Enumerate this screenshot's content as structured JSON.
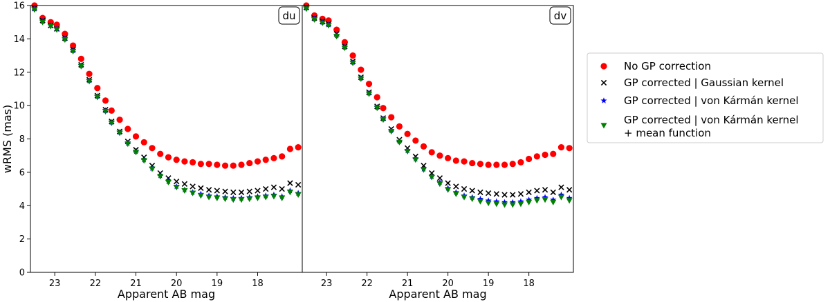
{
  "chart_data": [
    {
      "type": "scatter",
      "panel_tag": "du",
      "xlabel": "Apparent AB mag",
      "ylabel": "wRMS (mas)",
      "xlim": [
        23.6,
        16.9
      ],
      "ylim": [
        0,
        16
      ],
      "xticks": [
        23,
        22,
        21,
        20,
        19,
        18
      ],
      "yticks": [
        0,
        2,
        4,
        6,
        8,
        10,
        12,
        14,
        16
      ],
      "x": [
        23.5,
        23.3,
        23.1,
        22.95,
        22.75,
        22.55,
        22.35,
        22.15,
        21.95,
        21.75,
        21.6,
        21.4,
        21.2,
        21.0,
        20.8,
        20.6,
        20.4,
        20.2,
        20.0,
        19.8,
        19.6,
        19.4,
        19.2,
        19.0,
        18.8,
        18.6,
        18.4,
        18.2,
        18.0,
        17.8,
        17.6,
        17.4,
        17.2,
        17.0
      ],
      "series": [
        {
          "name": "No GP correction",
          "marker": "circle",
          "color": "#ff0000",
          "values": [
            16.0,
            15.25,
            15.0,
            14.85,
            14.3,
            13.6,
            12.8,
            11.9,
            11.05,
            10.3,
            9.7,
            9.15,
            8.6,
            8.15,
            7.8,
            7.45,
            7.1,
            6.9,
            6.75,
            6.65,
            6.6,
            6.5,
            6.5,
            6.45,
            6.4,
            6.4,
            6.45,
            6.55,
            6.65,
            6.75,
            6.85,
            6.95,
            7.4,
            7.5
          ]
        },
        {
          "name": "GP corrected | Gaussian kernel",
          "marker": "x",
          "color": "#000000",
          "values": [
            15.85,
            15.1,
            14.8,
            14.6,
            14.05,
            13.35,
            12.45,
            11.55,
            10.6,
            9.75,
            9.05,
            8.45,
            7.85,
            7.35,
            6.9,
            6.4,
            5.95,
            5.65,
            5.45,
            5.3,
            5.15,
            5.05,
            4.95,
            4.9,
            4.85,
            4.8,
            4.8,
            4.85,
            4.9,
            5.0,
            5.1,
            5.0,
            5.35,
            5.25
          ]
        },
        {
          "name": "GP corrected | von Kármán kernel",
          "marker": "star",
          "color": "#0000ff",
          "values": [
            15.8,
            15.05,
            14.8,
            14.6,
            14.0,
            13.3,
            12.4,
            11.5,
            10.55,
            9.7,
            9.0,
            8.4,
            7.75,
            7.25,
            6.75,
            6.25,
            5.8,
            5.45,
            5.15,
            4.95,
            4.8,
            4.7,
            4.6,
            4.55,
            4.5,
            4.45,
            4.45,
            4.5,
            4.55,
            4.6,
            4.65,
            4.55,
            4.9,
            4.75
          ]
        },
        {
          "name": "GP corrected | von Kármán kernel + mean function",
          "marker": "triangle-down",
          "color": "#008000",
          "values": [
            15.75,
            15.0,
            14.75,
            14.55,
            13.95,
            13.25,
            12.35,
            11.45,
            10.5,
            9.65,
            8.95,
            8.35,
            7.7,
            7.2,
            6.7,
            6.2,
            5.75,
            5.4,
            5.1,
            4.9,
            4.75,
            4.6,
            4.5,
            4.45,
            4.4,
            4.35,
            4.35,
            4.4,
            4.45,
            4.5,
            4.55,
            4.45,
            4.8,
            4.65
          ]
        }
      ]
    },
    {
      "type": "scatter",
      "panel_tag": "dv",
      "xlabel": "Apparent AB mag",
      "ylabel": "",
      "xlim": [
        23.6,
        16.9
      ],
      "ylim": [
        0,
        16
      ],
      "xticks": [
        23,
        22,
        21,
        20,
        19,
        18
      ],
      "yticks": [],
      "x": [
        23.5,
        23.3,
        23.1,
        22.95,
        22.75,
        22.55,
        22.35,
        22.15,
        21.95,
        21.75,
        21.6,
        21.4,
        21.2,
        21.0,
        20.8,
        20.6,
        20.4,
        20.2,
        20.0,
        19.8,
        19.6,
        19.4,
        19.2,
        19.0,
        18.8,
        18.6,
        18.4,
        18.2,
        18.0,
        17.8,
        17.6,
        17.4,
        17.2,
        17.0
      ],
      "series": [
        {
          "name": "No GP correction",
          "marker": "circle",
          "color": "#ff0000",
          "values": [
            16.0,
            15.4,
            15.2,
            15.1,
            14.55,
            13.8,
            13.0,
            12.15,
            11.3,
            10.5,
            9.85,
            9.3,
            8.75,
            8.3,
            7.9,
            7.55,
            7.2,
            7.0,
            6.85,
            6.7,
            6.65,
            6.55,
            6.5,
            6.45,
            6.45,
            6.45,
            6.5,
            6.6,
            6.8,
            6.95,
            7.05,
            7.1,
            7.5,
            7.45
          ]
        },
        {
          "name": "GP corrected | Gaussian kernel",
          "marker": "x",
          "color": "#000000",
          "values": [
            15.9,
            15.25,
            15.05,
            14.9,
            14.3,
            13.55,
            12.65,
            11.7,
            10.8,
            9.95,
            9.25,
            8.6,
            7.95,
            7.45,
            6.95,
            6.4,
            5.95,
            5.65,
            5.35,
            5.15,
            5.0,
            4.9,
            4.8,
            4.75,
            4.7,
            4.65,
            4.65,
            4.7,
            4.8,
            4.9,
            4.95,
            4.8,
            5.1,
            4.95
          ]
        },
        {
          "name": "GP corrected | von Kármán kernel",
          "marker": "star",
          "color": "#0000ff",
          "values": [
            15.85,
            15.2,
            15.0,
            14.85,
            14.2,
            13.5,
            12.6,
            11.65,
            10.75,
            9.9,
            9.2,
            8.5,
            7.85,
            7.3,
            6.8,
            6.2,
            5.75,
            5.4,
            5.05,
            4.8,
            4.6,
            4.5,
            4.4,
            4.3,
            4.25,
            4.2,
            4.2,
            4.25,
            4.35,
            4.45,
            4.5,
            4.35,
            4.65,
            4.45
          ]
        },
        {
          "name": "GP corrected | von Kármán kernel + mean function",
          "marker": "triangle-down",
          "color": "#008000",
          "values": [
            15.8,
            15.15,
            14.95,
            14.8,
            14.15,
            13.45,
            12.55,
            11.6,
            10.7,
            9.85,
            9.15,
            8.45,
            7.8,
            7.25,
            6.75,
            6.15,
            5.7,
            5.3,
            4.95,
            4.7,
            4.5,
            4.4,
            4.25,
            4.15,
            4.1,
            4.05,
            4.05,
            4.1,
            4.2,
            4.3,
            4.35,
            4.2,
            4.5,
            4.3
          ]
        }
      ]
    }
  ],
  "legend": {
    "location": "right",
    "entries": [
      {
        "marker": "circle",
        "color": "#ff0000",
        "label": "No GP correction",
        "label2": ""
      },
      {
        "marker": "x",
        "color": "#000000",
        "label": "GP corrected | Gaussian kernel",
        "label2": ""
      },
      {
        "marker": "star",
        "color": "#0000ff",
        "label": "GP corrected | von Kármán kernel",
        "label2": ""
      },
      {
        "marker": "triangle-down",
        "color": "#008000",
        "label": "GP corrected | von Kármán kernel",
        "label2": "+ mean function"
      }
    ]
  }
}
